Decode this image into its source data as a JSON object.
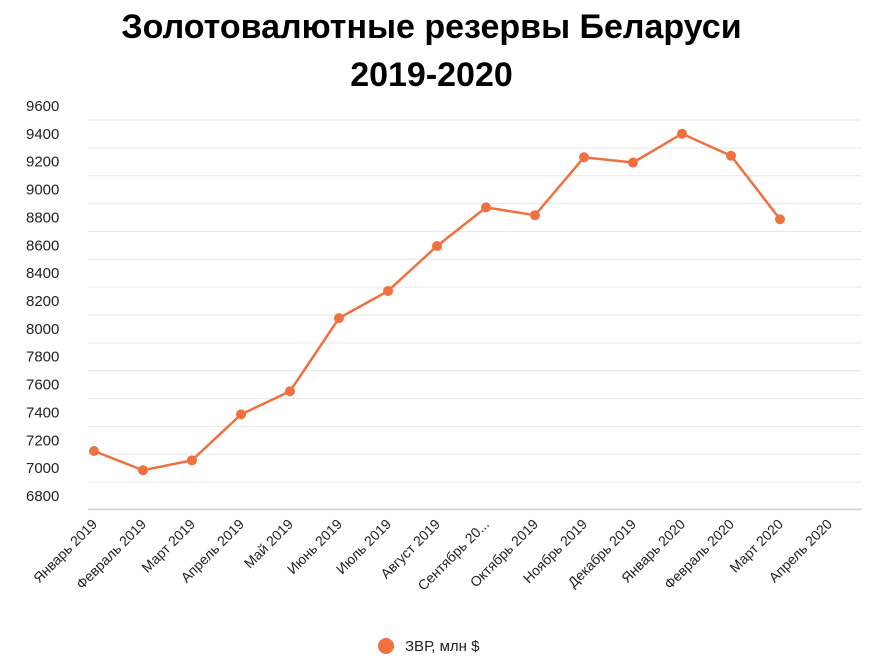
{
  "chart_data": {
    "type": "line",
    "title": "Золотовалютные резервы Беларуси",
    "subtitle": "2019-2020",
    "xlabel": "",
    "ylabel": "",
    "ylim": [
      6800,
      9600
    ],
    "yticks": [
      6800,
      7000,
      7200,
      7400,
      7600,
      7800,
      8000,
      8200,
      8400,
      8600,
      8800,
      9000,
      9200,
      9400,
      9600
    ],
    "categories": [
      "Январь 2019",
      "Февраль 2019",
      "Март 2019",
      "Апрель 2019",
      "Май 2019",
      "Июнь 2019",
      "Июль 2019",
      "Август 2019",
      "Сентябрь 20...",
      "Октябрь 2019",
      "Ноябрь 2019",
      "Декабрь 2019",
      "Январь 2020",
      "Февраль 2020",
      "Март 2020",
      "Апрель 2020"
    ],
    "series": [
      {
        "name": "ЗВР, млн $",
        "color": "#f0703f",
        "values": [
          7123,
          6985,
          7056,
          7386,
          7552,
          8077,
          8272,
          8595,
          8872,
          8816,
          9232,
          9194,
          9401,
          9243,
          8787,
          null
        ]
      }
    ],
    "grid": true,
    "legend_position": "bottom"
  }
}
